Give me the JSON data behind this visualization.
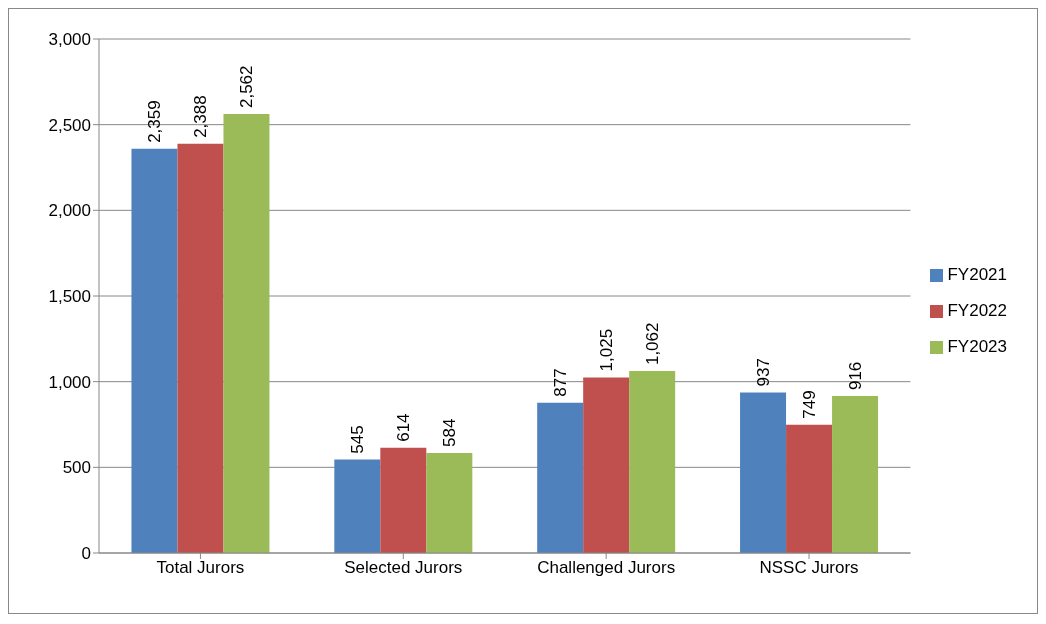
{
  "chart_data": {
    "type": "bar",
    "categories": [
      "Total Jurors",
      "Selected Jurors",
      "Challenged Jurors",
      "NSSC Jurors"
    ],
    "series": [
      {
        "name": "FY2021",
        "color": "#4f81bd",
        "values": [
          2359,
          545,
          877,
          937
        ],
        "value_labels": [
          "2,359",
          "545",
          "877",
          "937"
        ]
      },
      {
        "name": "FY2022",
        "color": "#c0504d",
        "values": [
          2388,
          614,
          1025,
          749
        ],
        "value_labels": [
          "2,388",
          "614",
          "1,025",
          "749"
        ]
      },
      {
        "name": "FY2023",
        "color": "#9bbb59",
        "values": [
          2562,
          584,
          1062,
          916
        ],
        "value_labels": [
          "2,562",
          "584",
          "1,062",
          "916"
        ]
      }
    ],
    "ylim": [
      0,
      3000
    ],
    "yticks": [
      0,
      {
        "value": 500,
        "label": "500"
      },
      {
        "value": 1000,
        "label": "1,000"
      },
      {
        "value": 1500,
        "label": "1,500"
      },
      {
        "value": 2000,
        "label": "2,000"
      },
      {
        "value": 2500,
        "label": "2,500"
      },
      {
        "value": 3000,
        "label": "3,000"
      }
    ],
    "grid": "y",
    "legend": "right"
  }
}
